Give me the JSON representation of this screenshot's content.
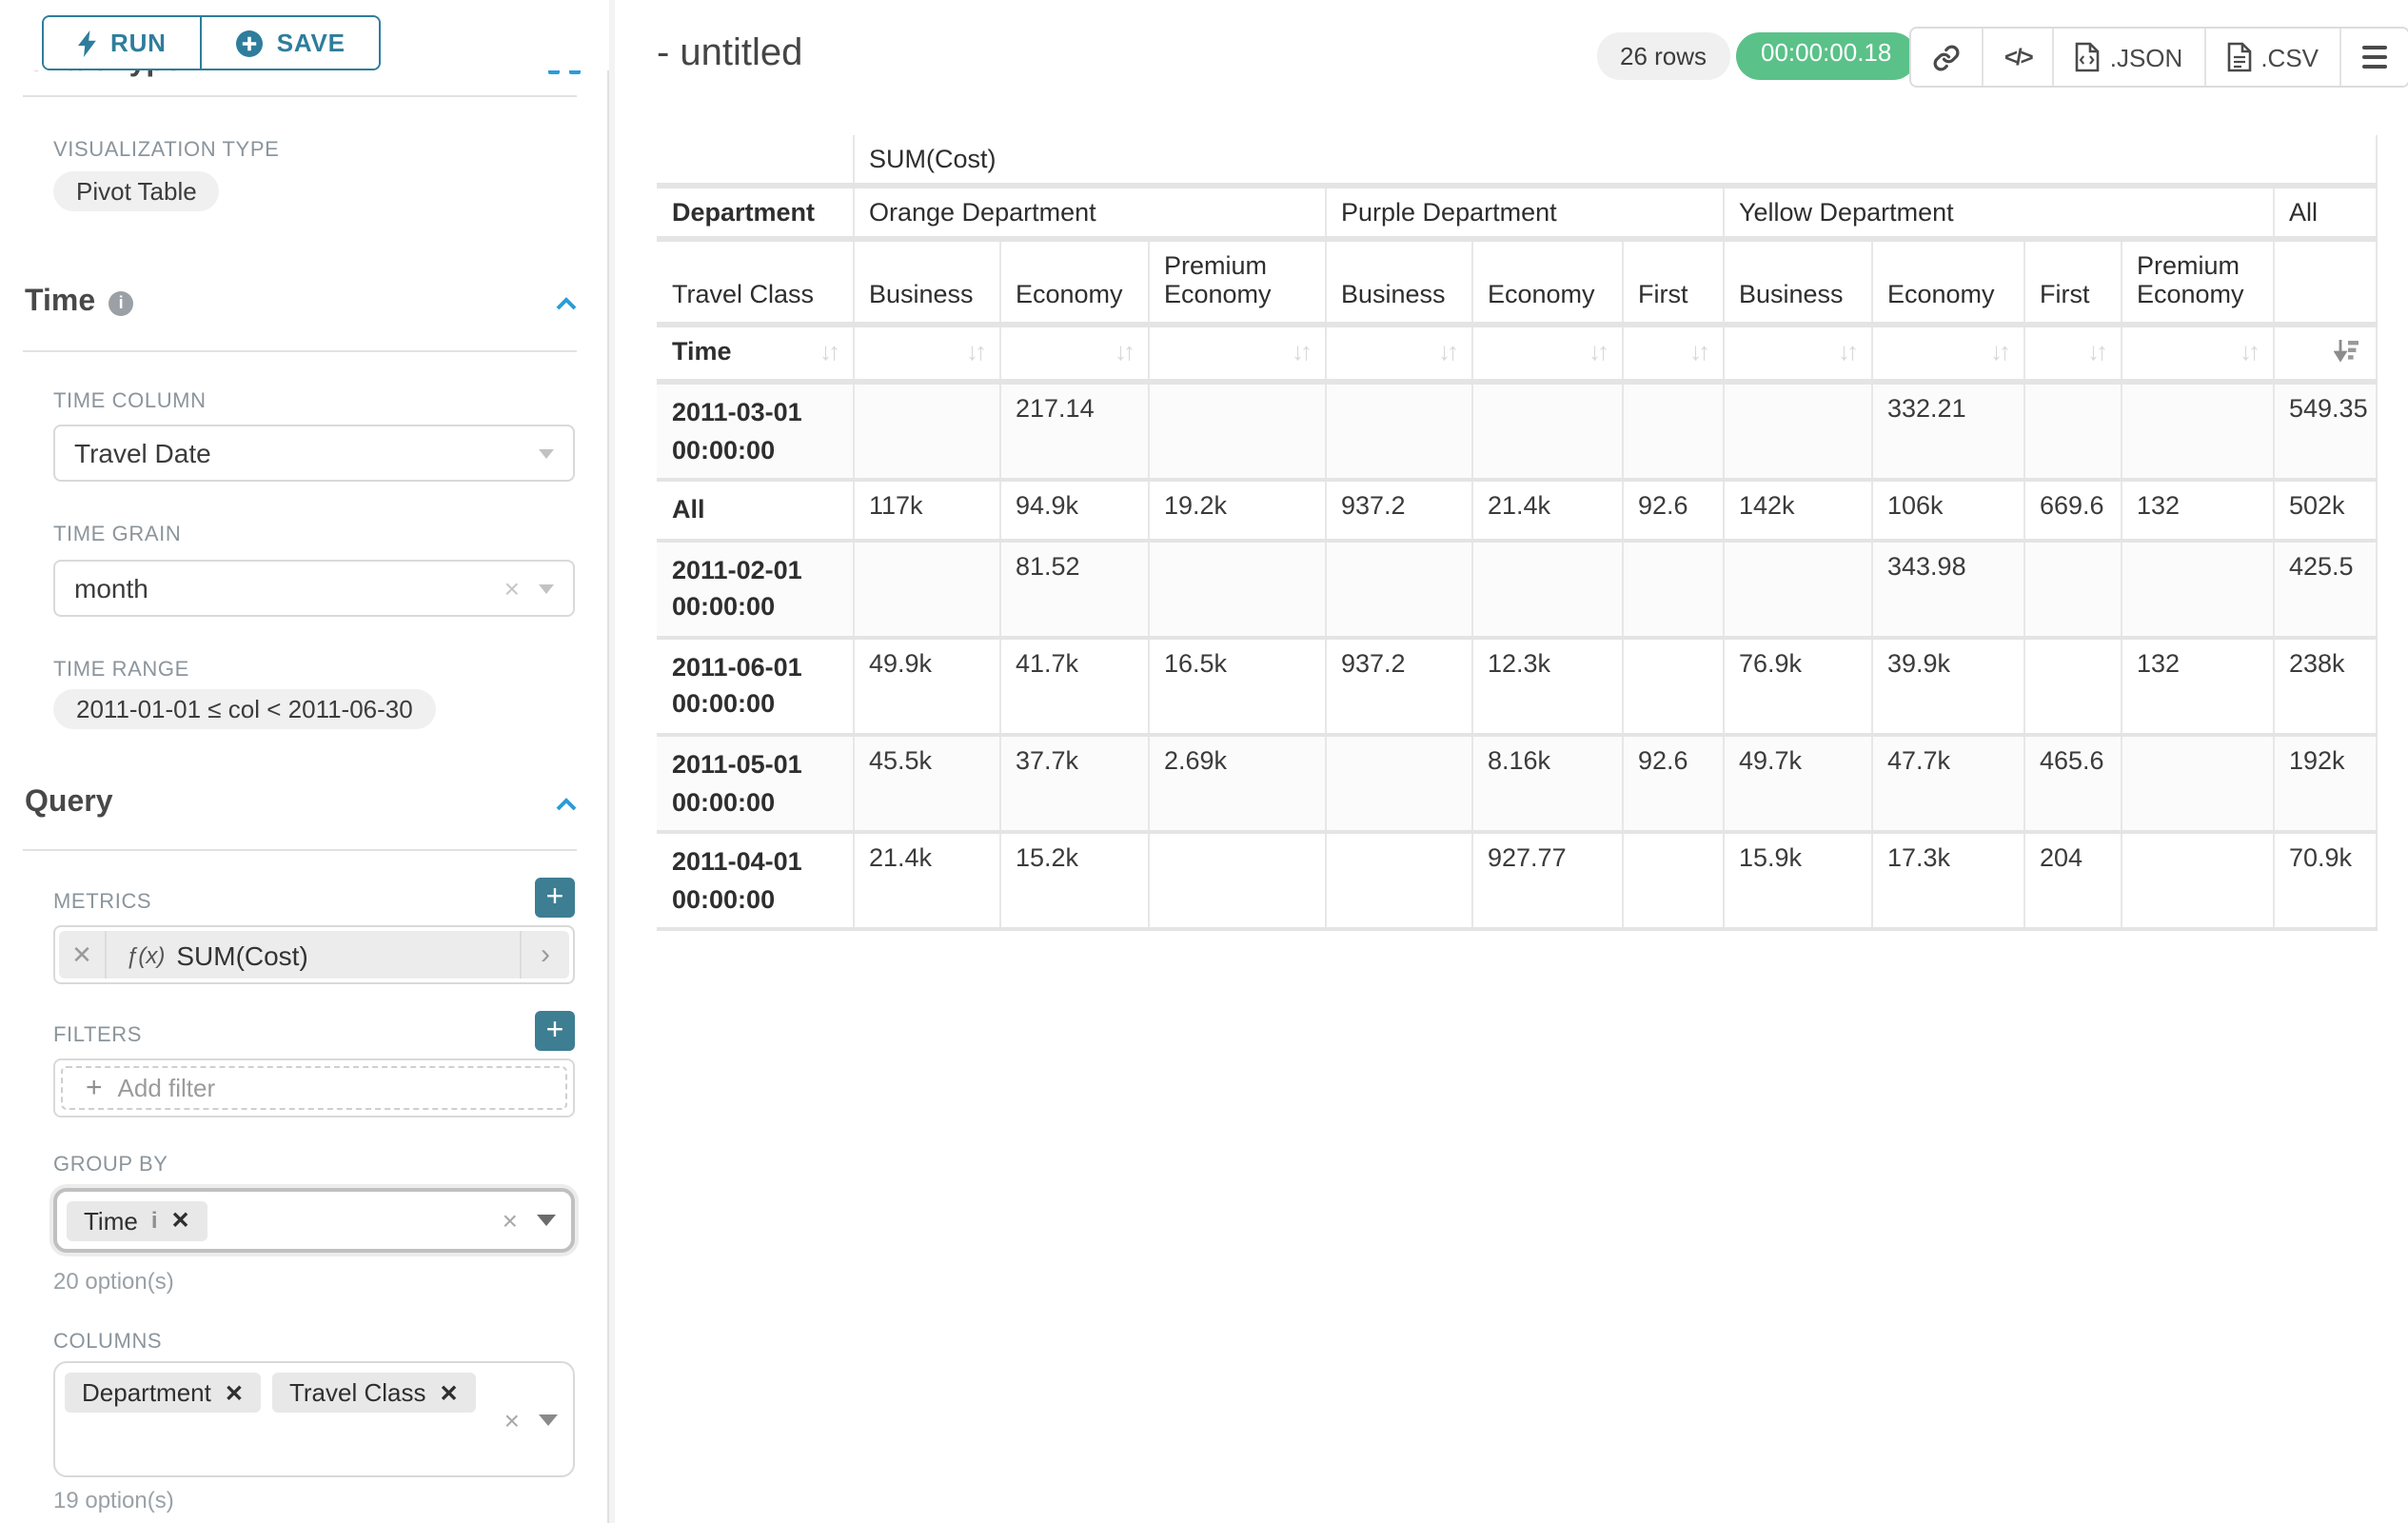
{
  "sidebar": {
    "run_label": "RUN",
    "save_label": "SAVE",
    "chart_type_heading": "Chart Type",
    "viz_type_label": "VISUALIZATION TYPE",
    "viz_type_value": "Pivot Table",
    "time": {
      "heading": "Time",
      "time_column_label": "TIME COLUMN",
      "time_column_value": "Travel Date",
      "time_grain_label": "TIME GRAIN",
      "time_grain_value": "month",
      "time_range_label": "TIME RANGE",
      "time_range_value": "2011-01-01 ≤ col < 2011-06-30"
    },
    "query": {
      "heading": "Query",
      "metrics_label": "METRICS",
      "metric_prefix": "ƒ(x)",
      "metric_value": "SUM(Cost)",
      "filters_label": "FILTERS",
      "add_filter_label": "Add filter",
      "group_by_label": "GROUP BY",
      "group_by_chips": [
        "Time"
      ],
      "group_by_hint": "20 option(s)",
      "columns_label": "COLUMNS",
      "columns_chips": [
        "Department",
        "Travel Class"
      ],
      "columns_hint": "19 option(s)"
    }
  },
  "header": {
    "title": "- untitled",
    "row_count_badge": "26 rows",
    "timer_badge": "00:00:00.18",
    "export_json_label": ".JSON",
    "export_csv_label": ".CSV"
  },
  "colors": {
    "accent_teal": "#2e7d9c",
    "add_button_teal": "#3d7e93",
    "success_green": "#5ac189",
    "chevron_blue": "#2b9cd8"
  },
  "chart_data": {
    "type": "table",
    "metric_header": "SUM(Cost)",
    "row_dimensions": {
      "department_label": "Department",
      "travel_class_label": "Travel Class",
      "time_label": "Time"
    },
    "column_groups": [
      {
        "label": "Orange Department",
        "span": 3
      },
      {
        "label": "Purple Department",
        "span": 3
      },
      {
        "label": "Yellow Department",
        "span": 4
      },
      {
        "label": "All",
        "span": 1
      }
    ],
    "column_leaf_headers": [
      "Business",
      "Economy",
      "Premium Economy",
      "Business",
      "Economy",
      "First",
      "Business",
      "Economy",
      "First",
      "Premium Economy",
      ""
    ],
    "sorted_column_index": 10,
    "sort_direction": "desc",
    "rows": [
      {
        "label": "2011-03-01 00:00:00",
        "values": [
          "",
          "217.14",
          "",
          "",
          "",
          "",
          "",
          "332.21",
          "",
          "",
          "549.35"
        ]
      },
      {
        "label": "All",
        "values": [
          "117k",
          "94.9k",
          "19.2k",
          "937.2",
          "21.4k",
          "92.6",
          "142k",
          "106k",
          "669.6",
          "132",
          "502k"
        ]
      },
      {
        "label": "2011-02-01 00:00:00",
        "values": [
          "",
          "81.52",
          "",
          "",
          "",
          "",
          "",
          "343.98",
          "",
          "",
          "425.5"
        ]
      },
      {
        "label": "2011-06-01 00:00:00",
        "values": [
          "49.9k",
          "41.7k",
          "16.5k",
          "937.2",
          "12.3k",
          "",
          "76.9k",
          "39.9k",
          "",
          "132",
          "238k"
        ]
      },
      {
        "label": "2011-05-01 00:00:00",
        "values": [
          "45.5k",
          "37.7k",
          "2.69k",
          "",
          "8.16k",
          "92.6",
          "49.7k",
          "47.7k",
          "465.6",
          "",
          "192k"
        ]
      },
      {
        "label": "2011-04-01 00:00:00",
        "values": [
          "21.4k",
          "15.2k",
          "",
          "",
          "927.77",
          "",
          "15.9k",
          "17.3k",
          "204",
          "",
          "70.9k"
        ]
      }
    ]
  }
}
